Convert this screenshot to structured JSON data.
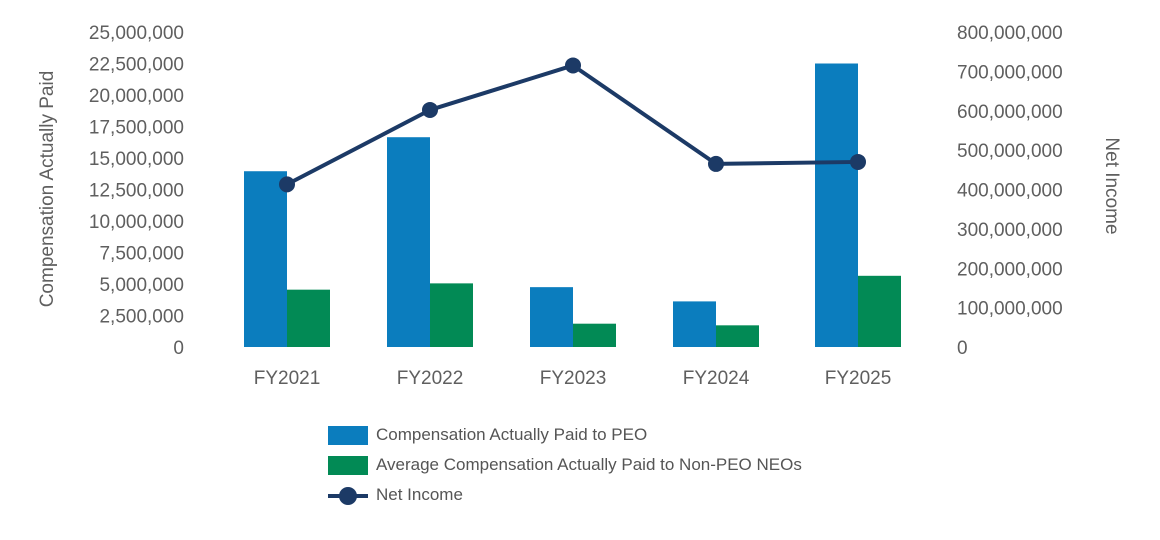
{
  "chart_data": {
    "type": "bar",
    "categories": [
      "FY2021",
      "FY2022",
      "FY2023",
      "FY2024",
      "FY2025"
    ],
    "series": [
      {
        "name": "Compensation Actually Paid to PEO",
        "type": "bar",
        "axis": "left",
        "color": "#0b7dbe",
        "values": [
          13950000,
          16650000,
          4750000,
          3620000,
          22500000
        ]
      },
      {
        "name": "Average Compensation Actually Paid to Non-PEO NEOs",
        "type": "bar",
        "axis": "left",
        "color": "#028a55",
        "values": [
          4550000,
          5050000,
          1850000,
          1720000,
          5650000
        ]
      },
      {
        "name": "Net Income",
        "type": "line",
        "axis": "right",
        "color": "#1c3a66",
        "values": [
          413000000,
          602000000,
          715000000,
          465000000,
          470000000
        ]
      }
    ],
    "y_left": {
      "label": "Compensation Actually Paid",
      "ylim": [
        0,
        25000000
      ],
      "ticks": [
        "0",
        "2,500,000",
        "5,000,000",
        "7,500,000",
        "10,000,000",
        "12,500,000",
        "15,000,000",
        "17,500,000",
        "20,000,000",
        "22,500,000",
        "25,000,000"
      ]
    },
    "y_right": {
      "label": "Net Income",
      "ylim": [
        0,
        800000000
      ],
      "ticks": [
        "0",
        "100,000,000",
        "200,000,000",
        "300,000,000",
        "400,000,000",
        "500,000,000",
        "600,000,000",
        "700,000,000",
        "800,000,000"
      ]
    },
    "legend_position": "bottom-center",
    "grid": false
  }
}
